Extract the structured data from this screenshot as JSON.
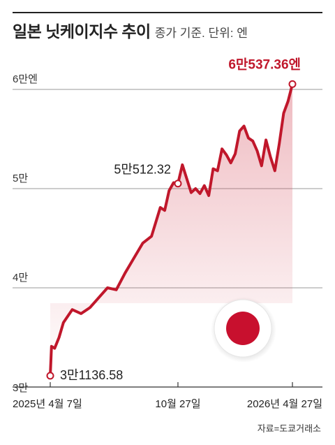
{
  "chart_data": {
    "type": "line",
    "title": "일본 닛케이지수 추이",
    "subtitle": "종가 기준. 단위: 엔",
    "y_tick_labels": [
      "3만",
      "4만",
      "5만",
      "6만엔"
    ],
    "y_ticks": [
      30000,
      40000,
      50000,
      60000
    ],
    "ylim": [
      30000,
      60000
    ],
    "x_tick_labels": [
      "2025년 4월 7일",
      "10월 27일",
      "2026년 4월 27일"
    ],
    "x_tick_dates": [
      "2025-04-07",
      "2025-10-27",
      "2026-04-27"
    ],
    "series": [
      {
        "x": [
          "2025-04-07",
          "2025-04-09",
          "2025-04-14",
          "2025-04-21",
          "2025-04-28",
          "2025-05-12",
          "2025-05-26",
          "2025-06-09",
          "2025-06-23",
          "2025-07-07",
          "2025-07-21",
          "2025-08-04",
          "2025-08-18",
          "2025-09-01",
          "2025-09-15",
          "2025-09-29",
          "2025-10-06",
          "2025-10-13",
          "2025-10-20",
          "2025-10-27",
          "2025-11-03",
          "2025-11-10",
          "2025-11-17",
          "2025-11-24",
          "2025-12-01",
          "2025-12-08",
          "2025-12-15",
          "2025-12-22",
          "2025-12-29",
          "2026-01-05",
          "2026-01-12",
          "2026-01-19",
          "2026-01-26",
          "2026-02-02",
          "2026-02-09",
          "2026-02-16",
          "2026-02-23",
          "2026-03-02",
          "2026-03-09",
          "2026-03-16",
          "2026-03-23",
          "2026-03-30",
          "2026-04-06",
          "2026-04-13",
          "2026-04-20",
          "2026-04-27"
        ],
        "values": [
          31136.58,
          34100,
          33900,
          35000,
          36500,
          37800,
          37400,
          38000,
          39000,
          40000,
          39800,
          41500,
          43000,
          44500,
          45200,
          48100,
          47800,
          49800,
          50600,
          50512.32,
          52400,
          51000,
          49600,
          50000,
          49500,
          50300,
          49300,
          52000,
          51800,
          54000,
          53400,
          52600,
          53500,
          55800,
          56300,
          55100,
          54800,
          53800,
          52300,
          54900,
          53200,
          51800,
          54500,
          57600,
          58800,
          60537.36
        ],
        "color": "#c0172b"
      }
    ],
    "annotations": [
      {
        "label": "3만1136.58",
        "x": "2025-04-07",
        "y": 31136.58
      },
      {
        "label": "5만512.32",
        "x": "2025-10-27",
        "y": 50512.32
      },
      {
        "label": "6만537.36엔",
        "x": "2026-04-27",
        "y": 60537.36
      }
    ]
  },
  "source": "자료=도쿄거래소",
  "colors": {
    "line": "#c0172b",
    "grid": "#9a9a9a",
    "text": "#222222"
  }
}
